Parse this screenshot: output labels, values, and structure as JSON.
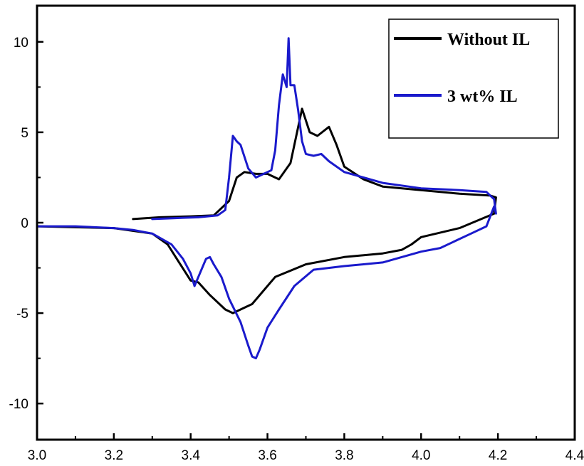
{
  "chart_data": {
    "type": "line",
    "title": "",
    "xlabel": "",
    "ylabel": "",
    "xlim": [
      3.0,
      4.4
    ],
    "ylim": [
      -12,
      12
    ],
    "x_ticks": [
      3.0,
      3.2,
      3.4,
      3.6,
      3.8,
      4.0,
      4.2,
      4.4
    ],
    "x_tick_labels": [
      "3.0",
      "3.2",
      "3.4",
      "3.6",
      "3.8",
      "4.0",
      "4.2",
      "4.4"
    ],
    "y_ticks": [
      10,
      5,
      0,
      -5,
      -10
    ],
    "y_tick_labels": [
      "10",
      "5",
      "0",
      "-5",
      "-10"
    ],
    "grid": false,
    "legend_position": "top-right",
    "series": [
      {
        "name": "Without IL",
        "color": "#000000",
        "x": [
          3.25,
          3.32,
          3.4,
          3.46,
          3.5,
          3.52,
          3.54,
          3.57,
          3.6,
          3.63,
          3.66,
          3.69,
          3.71,
          3.73,
          3.76,
          3.78,
          3.8,
          3.85,
          3.9,
          4.0,
          4.1,
          4.18,
          4.195,
          4.19,
          4.1,
          4.0,
          3.975,
          3.95,
          3.9,
          3.8,
          3.7,
          3.62,
          3.56,
          3.53,
          3.51,
          3.49,
          3.45,
          3.42,
          3.4,
          3.37,
          3.34,
          3.3,
          3.2,
          3.0
        ],
        "y": [
          0.2,
          0.3,
          0.35,
          0.4,
          1.2,
          2.5,
          2.8,
          2.7,
          2.7,
          2.4,
          3.3,
          6.3,
          5.0,
          4.8,
          5.3,
          4.3,
          3.1,
          2.4,
          2.0,
          1.8,
          1.6,
          1.5,
          1.4,
          0.5,
          -0.3,
          -0.8,
          -1.2,
          -1.5,
          -1.7,
          -1.9,
          -2.3,
          -3.0,
          -4.5,
          -4.8,
          -5.0,
          -4.8,
          -4.0,
          -3.3,
          -3.2,
          -2.2,
          -1.2,
          -0.6,
          -0.3,
          -0.2
        ]
      },
      {
        "name": "3 wt% IL",
        "color": "#1a1acc",
        "x": [
          3.3,
          3.36,
          3.42,
          3.47,
          3.49,
          3.5,
          3.51,
          3.52,
          3.53,
          3.55,
          3.57,
          3.59,
          3.61,
          3.62,
          3.63,
          3.64,
          3.65,
          3.655,
          3.66,
          3.67,
          3.68,
          3.69,
          3.7,
          3.72,
          3.74,
          3.76,
          3.8,
          3.85,
          3.9,
          4.0,
          4.1,
          4.17,
          4.19,
          4.195,
          4.19,
          4.17,
          4.13,
          4.1,
          4.05,
          4.0,
          3.95,
          3.9,
          3.85,
          3.8,
          3.72,
          3.67,
          3.63,
          3.6,
          3.58,
          3.57,
          3.56,
          3.55,
          3.53,
          3.5,
          3.48,
          3.46,
          3.45,
          3.44,
          3.42,
          3.41,
          3.4,
          3.38,
          3.35,
          3.3,
          3.25,
          3.2,
          3.1,
          3.0
        ],
        "y": [
          0.2,
          0.25,
          0.3,
          0.4,
          0.7,
          2.5,
          4.8,
          4.5,
          4.3,
          3.0,
          2.5,
          2.7,
          2.9,
          4.0,
          6.5,
          8.2,
          7.5,
          10.2,
          7.6,
          7.6,
          6.2,
          4.5,
          3.8,
          3.7,
          3.8,
          3.4,
          2.8,
          2.5,
          2.2,
          1.9,
          1.8,
          1.7,
          1.3,
          0.5,
          0.9,
          -0.2,
          -0.6,
          -0.9,
          -1.4,
          -1.6,
          -1.9,
          -2.2,
          -2.3,
          -2.4,
          -2.6,
          -3.5,
          -4.8,
          -5.8,
          -7.0,
          -7.5,
          -7.4,
          -6.8,
          -5.5,
          -4.2,
          -3.0,
          -2.3,
          -1.9,
          -2.0,
          -3.0,
          -3.5,
          -2.8,
          -2.0,
          -1.2,
          -0.6,
          -0.4,
          -0.3,
          -0.2,
          -0.2
        ]
      }
    ]
  }
}
